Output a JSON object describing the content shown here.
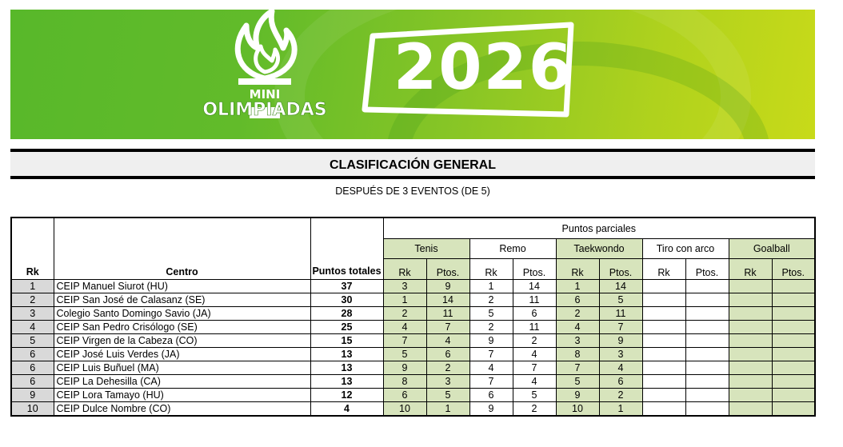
{
  "banner": {
    "logo_line1": "MINI",
    "logo_line2": "OLIMPIADAS",
    "year": "2026"
  },
  "title": "CLASIFICACIÓN GENERAL",
  "subtitle": "DESPUÉS DE 3 EVENTOS (DE 5)",
  "table": {
    "headers": {
      "rank": "Rk",
      "center": "Centro",
      "total": "Puntos totales",
      "partial": "Puntos parciales",
      "rk": "Rk",
      "pts": "Ptos."
    },
    "events": [
      "Tenis",
      "Remo",
      "Taekwondo",
      "Tiro con arco",
      "Goalball"
    ],
    "rows": [
      {
        "rank": "1",
        "center": "CEIP Manuel Siurot (HU)",
        "total": "37",
        "scores": [
          "3",
          "9",
          "1",
          "14",
          "1",
          "14",
          "",
          "",
          "",
          ""
        ]
      },
      {
        "rank": "2",
        "center": "CEIP San José de Calasanz (SE)",
        "total": "30",
        "scores": [
          "1",
          "14",
          "2",
          "11",
          "6",
          "5",
          "",
          "",
          "",
          ""
        ]
      },
      {
        "rank": "3",
        "center": "Colegio Santo Domingo Savio (JA)",
        "total": "28",
        "scores": [
          "2",
          "11",
          "5",
          "6",
          "2",
          "11",
          "",
          "",
          "",
          ""
        ]
      },
      {
        "rank": "4",
        "center": "CEIP San Pedro Crisólogo (SE)",
        "total": "25",
        "scores": [
          "4",
          "7",
          "2",
          "11",
          "4",
          "7",
          "",
          "",
          "",
          ""
        ]
      },
      {
        "rank": "5",
        "center": "CEIP Virgen de la Cabeza (CO)",
        "total": "15",
        "scores": [
          "7",
          "4",
          "9",
          "2",
          "3",
          "9",
          "",
          "",
          "",
          ""
        ]
      },
      {
        "rank": "6",
        "center": "CEIP José Luis Verdes (JA)",
        "total": "13",
        "scores": [
          "5",
          "6",
          "7",
          "4",
          "8",
          "3",
          "",
          "",
          "",
          ""
        ]
      },
      {
        "rank": "6",
        "center": "CEIP Luis Buñuel (MA)",
        "total": "13",
        "scores": [
          "9",
          "2",
          "4",
          "7",
          "7",
          "4",
          "",
          "",
          "",
          ""
        ]
      },
      {
        "rank": "6",
        "center": "CEIP La Dehesilla (CA)",
        "total": "13",
        "scores": [
          "8",
          "3",
          "7",
          "4",
          "5",
          "6",
          "",
          "",
          "",
          ""
        ]
      },
      {
        "rank": "9",
        "center": "CEIP Lora Tamayo (HU)",
        "total": "12",
        "scores": [
          "6",
          "5",
          "6",
          "5",
          "9",
          "2",
          "",
          "",
          "",
          ""
        ]
      },
      {
        "rank": "10",
        "center": "CEIP Dulce Nombre (CO)",
        "total": "4",
        "scores": [
          "10",
          "1",
          "9",
          "2",
          "10",
          "1",
          "",
          "",
          "",
          ""
        ]
      }
    ]
  },
  "colors": {
    "event_green": "#d7e4bc",
    "rank_gray": "#d9d9d9",
    "banner_green": "#62bb2a",
    "banner_lime": "#c8da19"
  }
}
